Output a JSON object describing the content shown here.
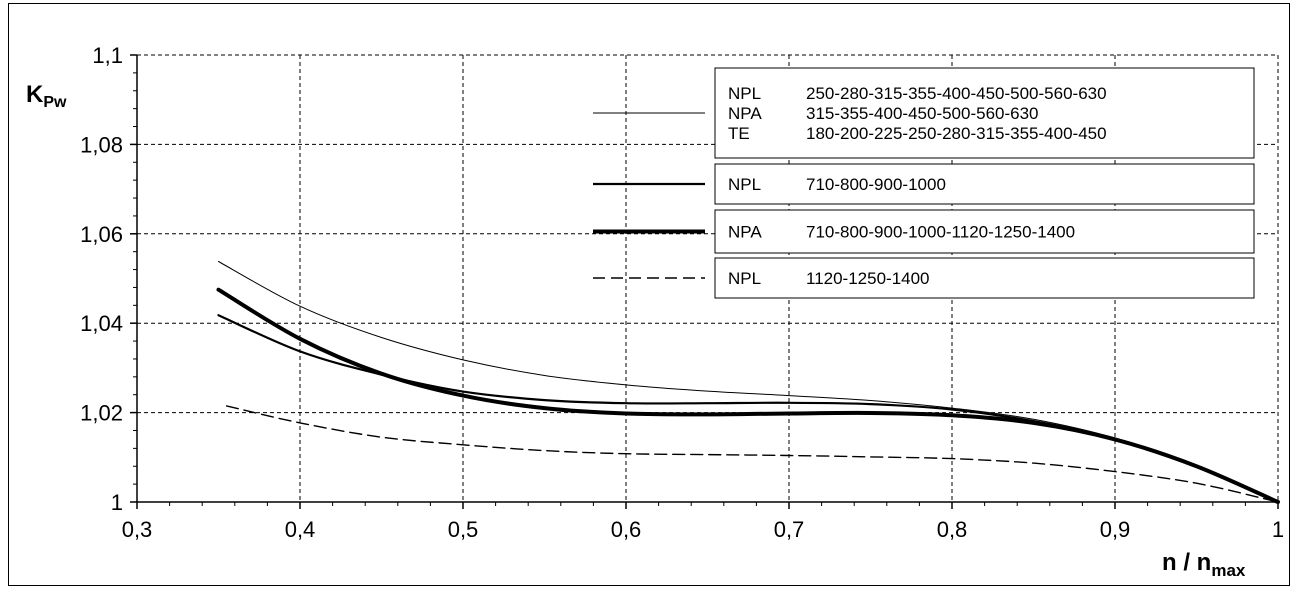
{
  "chart_data": {
    "type": "line",
    "xlim": [
      0.3,
      1.0
    ],
    "ylim": [
      1.0,
      1.1
    ],
    "x_ticks": [
      "0,3",
      "0,4",
      "0,5",
      "0,6",
      "0,7",
      "0,8",
      "0,9",
      "1"
    ],
    "y_ticks": [
      "1",
      "1,02",
      "1,04",
      "1,06",
      "1,08",
      "1,1"
    ],
    "y_tick_values": [
      1.0,
      1.02,
      1.04,
      1.06,
      1.08,
      1.1
    ],
    "x_tick_values": [
      0.3,
      0.4,
      0.5,
      0.6,
      0.7,
      0.8,
      0.9,
      1.0
    ],
    "ylabel": {
      "main": "K",
      "sub": "Pw"
    },
    "xlabel": {
      "main": "n / n",
      "sub": "max"
    },
    "grid": true,
    "legend_position": "top-right",
    "series": [
      {
        "style": "thin",
        "legend_lines": [
          {
            "type": "NPL",
            "sizes": "250-280-315-355-400-450-500-560-630"
          },
          {
            "type": "NPA",
            "sizes": "315-355-400-450-500-560-630"
          },
          {
            "type": "TE",
            "sizes": "180-200-225-250-280-315-355-400-450"
          }
        ],
        "x": [
          0.35,
          0.4,
          0.45,
          0.5,
          0.55,
          0.6,
          0.65,
          0.7,
          0.75,
          0.8,
          0.85,
          0.9,
          0.95,
          1.0
        ],
        "y": [
          1.0538,
          1.0438,
          1.0368,
          1.0318,
          1.0283,
          1.0262,
          1.0248,
          1.0238,
          1.0227,
          1.021,
          1.0185,
          1.0143,
          1.0081,
          1.0
        ]
      },
      {
        "style": "medium",
        "legend_lines": [
          {
            "type": "NPL",
            "sizes": "710-800-900-1000"
          }
        ],
        "x": [
          0.35,
          0.4,
          0.45,
          0.5,
          0.55,
          0.6,
          0.65,
          0.7,
          0.75,
          0.8,
          0.85,
          0.9,
          0.95,
          1.0
        ],
        "y": [
          1.0418,
          1.0337,
          1.0285,
          1.0247,
          1.0228,
          1.0221,
          1.0221,
          1.0222,
          1.0219,
          1.0207,
          1.0181,
          1.0142,
          1.0081,
          1.0
        ]
      },
      {
        "style": "thick",
        "legend_lines": [
          {
            "type": "NPA",
            "sizes": "710-800-900-1000-1120-1250-1400"
          }
        ],
        "x": [
          0.35,
          0.4,
          0.45,
          0.5,
          0.55,
          0.6,
          0.65,
          0.7,
          0.75,
          0.8,
          0.85,
          0.9,
          0.95,
          1.0
        ],
        "y": [
          1.0475,
          1.0365,
          1.0287,
          1.0238,
          1.021,
          1.0198,
          1.0196,
          1.0198,
          1.0199,
          1.0194,
          1.0177,
          1.014,
          1.008,
          1.0
        ]
      },
      {
        "style": "dashed",
        "legend_lines": [
          {
            "type": "NPL",
            "sizes": "1120-1250-1400"
          }
        ],
        "x": [
          0.355,
          0.4,
          0.45,
          0.5,
          0.55,
          0.6,
          0.65,
          0.7,
          0.75,
          0.8,
          0.85,
          0.9,
          0.95,
          1.0
        ],
        "y": [
          1.0215,
          1.0177,
          1.0145,
          1.0128,
          1.0115,
          1.0108,
          1.0106,
          1.0104,
          1.0101,
          1.0097,
          1.0087,
          1.0068,
          1.0042,
          1.0
        ]
      }
    ]
  }
}
